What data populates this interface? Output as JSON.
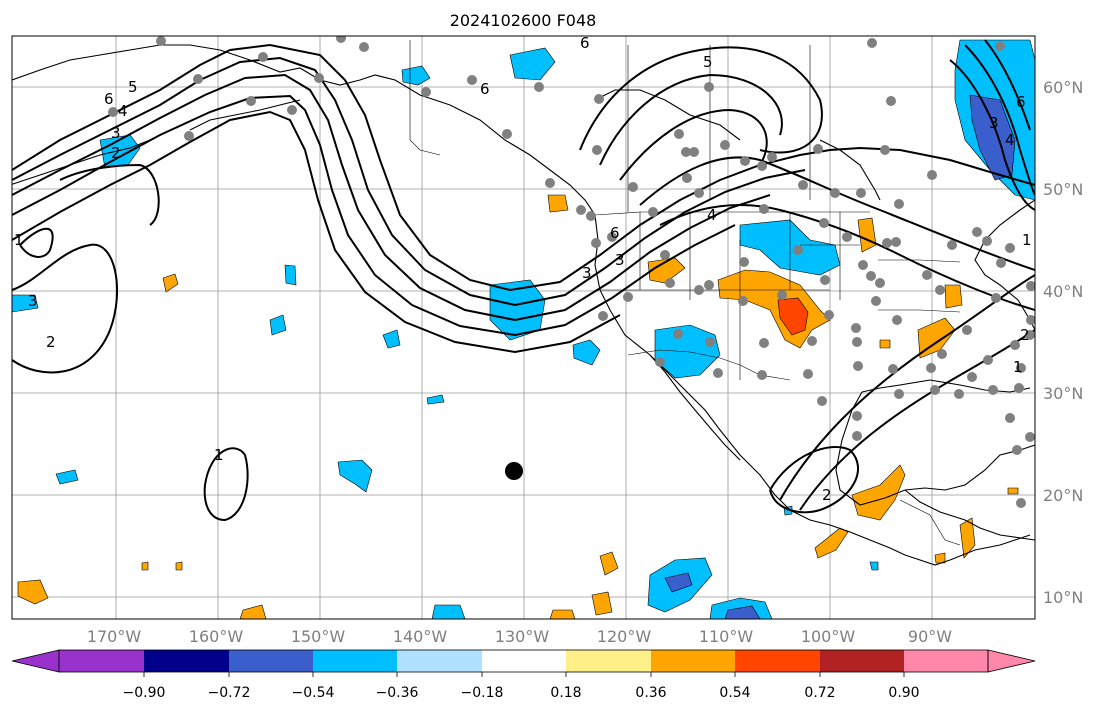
{
  "title": "2024102600 F048",
  "lat_labels": [
    "60°N",
    "50°N",
    "40°N",
    "30°N",
    "20°N",
    "10°N"
  ],
  "lon_labels": [
    "170°W",
    "160°W",
    "150°W",
    "140°W",
    "130°W",
    "120°W",
    "110°W",
    "100°W",
    "90°W"
  ],
  "contour_labels": [
    "5",
    "6",
    "4",
    "3",
    "2",
    "1",
    "3",
    "2",
    "1",
    "6",
    "5",
    "6",
    "6",
    "3",
    "3",
    "4",
    "2",
    "1",
    "2",
    "1",
    "6",
    "3",
    "4"
  ],
  "colorbar": {
    "ticks": [
      "−0.90",
      "−0.72",
      "−0.54",
      "−0.36",
      "−0.18",
      "0.18",
      "0.36",
      "0.54",
      "0.72",
      "0.90"
    ],
    "colors": [
      "#9932cc",
      "#00008b",
      "#3a5fcd",
      "#00bfff",
      "#b0e2ff",
      "#ffffff",
      "#fff08a",
      "#ffa500",
      "#ff4500",
      "#b22222",
      "#ff88aa"
    ]
  },
  "legend_colors": {
    "neg_light": "#b0e2ff",
    "neg_mid": "#00bfff",
    "neg_dark": "#3a5fcd",
    "pos_light": "#fff08a",
    "pos_mid": "#ffa500",
    "pos_dark": "#ff4500"
  },
  "markers": {
    "station_color": "#808080",
    "center_color": "#000000"
  }
}
